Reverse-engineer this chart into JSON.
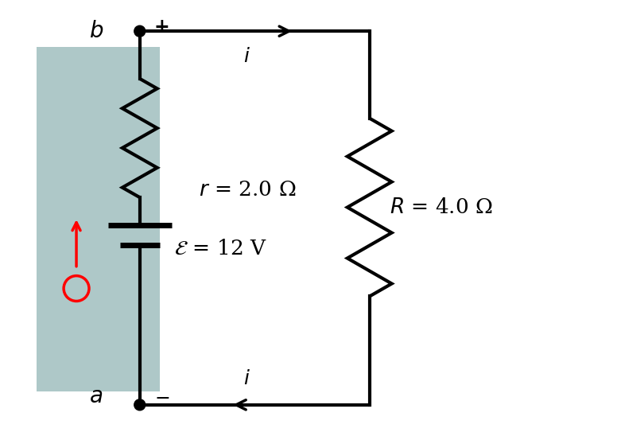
{
  "bg_color": "#ffffff",
  "box_color": "#aec8c8",
  "circuit_lw": 3.0,
  "label_fontsize": 20,
  "annotation_fontsize": 18,
  "r_label": "r = 2.0 Ω",
  "R_label": "R = 4.0 Ω",
  "emf_label": "= 12 V",
  "r_label_size": 19,
  "R_label_size": 19,
  "emf_label_size": 19
}
